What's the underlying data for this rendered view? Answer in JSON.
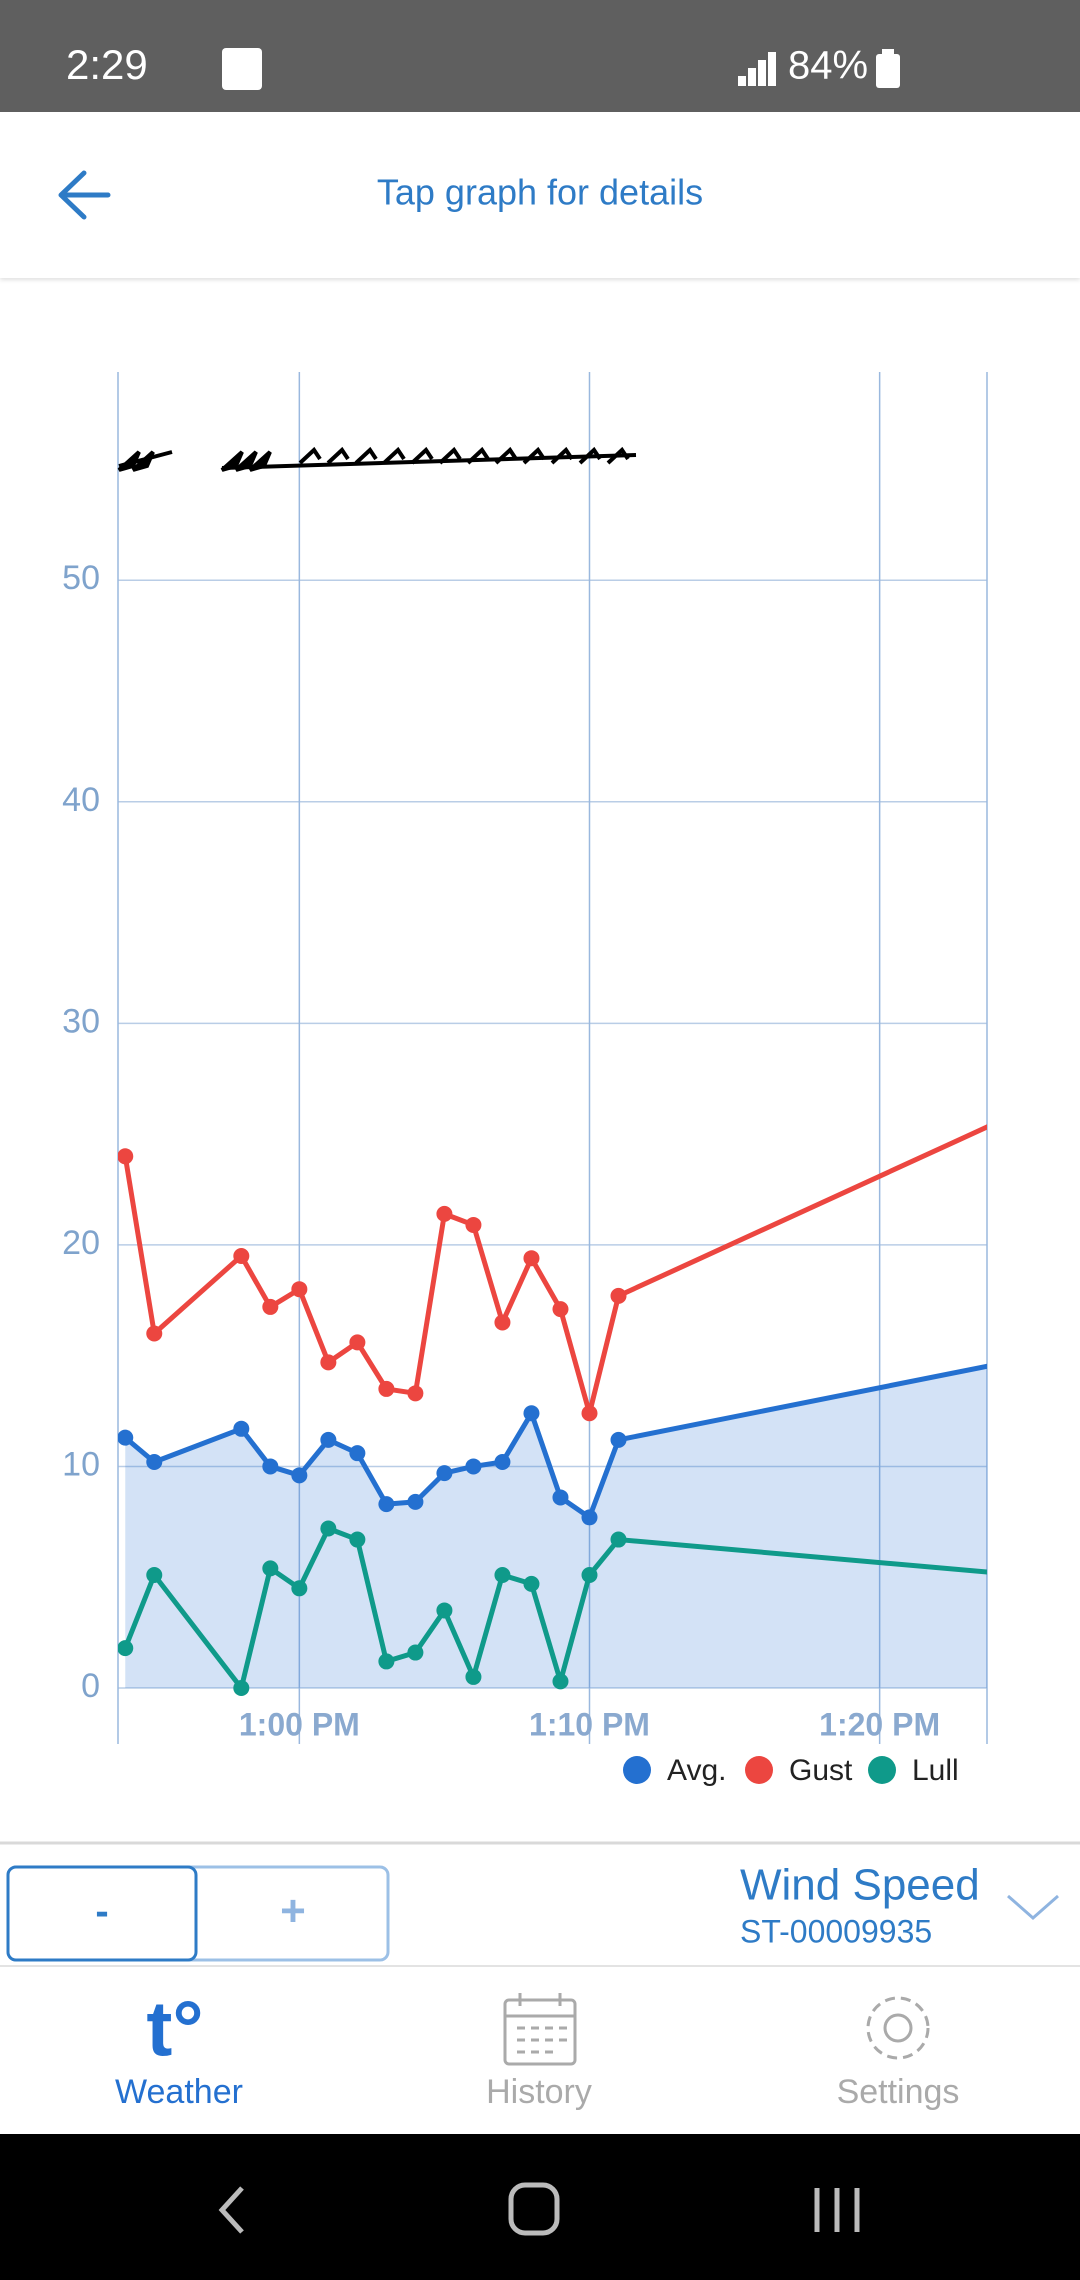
{
  "status_bar": {
    "time": "2:29",
    "battery": "84%"
  },
  "header": {
    "title": "Tap graph for details"
  },
  "chart_data": {
    "type": "line",
    "x": [
      "12:54 PM",
      "12:55 PM",
      "12:58 PM",
      "12:59 PM",
      "1:00 PM",
      "1:01 PM",
      "1:02 PM",
      "1:03 PM",
      "1:04 PM",
      "1:05 PM",
      "1:06 PM",
      "1:07 PM",
      "1:08 PM",
      "1:09 PM",
      "1:10 PM",
      "1:11 PM",
      "1:24 PM"
    ],
    "series": [
      {
        "name": "Avg.",
        "color": "#2470d0",
        "area": true,
        "values": [
          11.3,
          10.2,
          11.7,
          10.0,
          9.6,
          11.2,
          10.6,
          8.3,
          8.4,
          9.7,
          10.0,
          10.2,
          12.4,
          8.6,
          7.7,
          11.2,
          14.6
        ]
      },
      {
        "name": "Gust",
        "color": "#ec4640",
        "values": [
          24.0,
          16.0,
          19.5,
          17.2,
          18.0,
          14.7,
          15.6,
          13.5,
          13.3,
          21.4,
          20.9,
          16.5,
          19.4,
          17.1,
          12.4,
          17.7,
          25.5
        ]
      },
      {
        "name": "Lull",
        "color": "#0f9a8a",
        "values": [
          1.8,
          5.1,
          0,
          5.4,
          4.5,
          7.2,
          6.7,
          1.2,
          1.6,
          3.5,
          0.5,
          5.1,
          4.7,
          0.3,
          5.1,
          6.7,
          5.2
        ]
      }
    ],
    "xlim": [
      "12:53:45 PM",
      "1:23:42 PM"
    ],
    "xticks": [
      "1:00 PM",
      "1:10 PM",
      "1:20 PM"
    ],
    "ylim": [
      0,
      59.4
    ],
    "yticks": [
      0,
      10,
      20,
      30,
      40,
      50
    ],
    "grid": true
  },
  "controls": {
    "minus": "-",
    "plus": "+",
    "metric": "Wind Speed",
    "station": "ST-00009935"
  },
  "nav": {
    "items": [
      {
        "icon": "t°",
        "label": "Weather"
      },
      {
        "label": "History"
      },
      {
        "label": "Settings"
      }
    ]
  }
}
